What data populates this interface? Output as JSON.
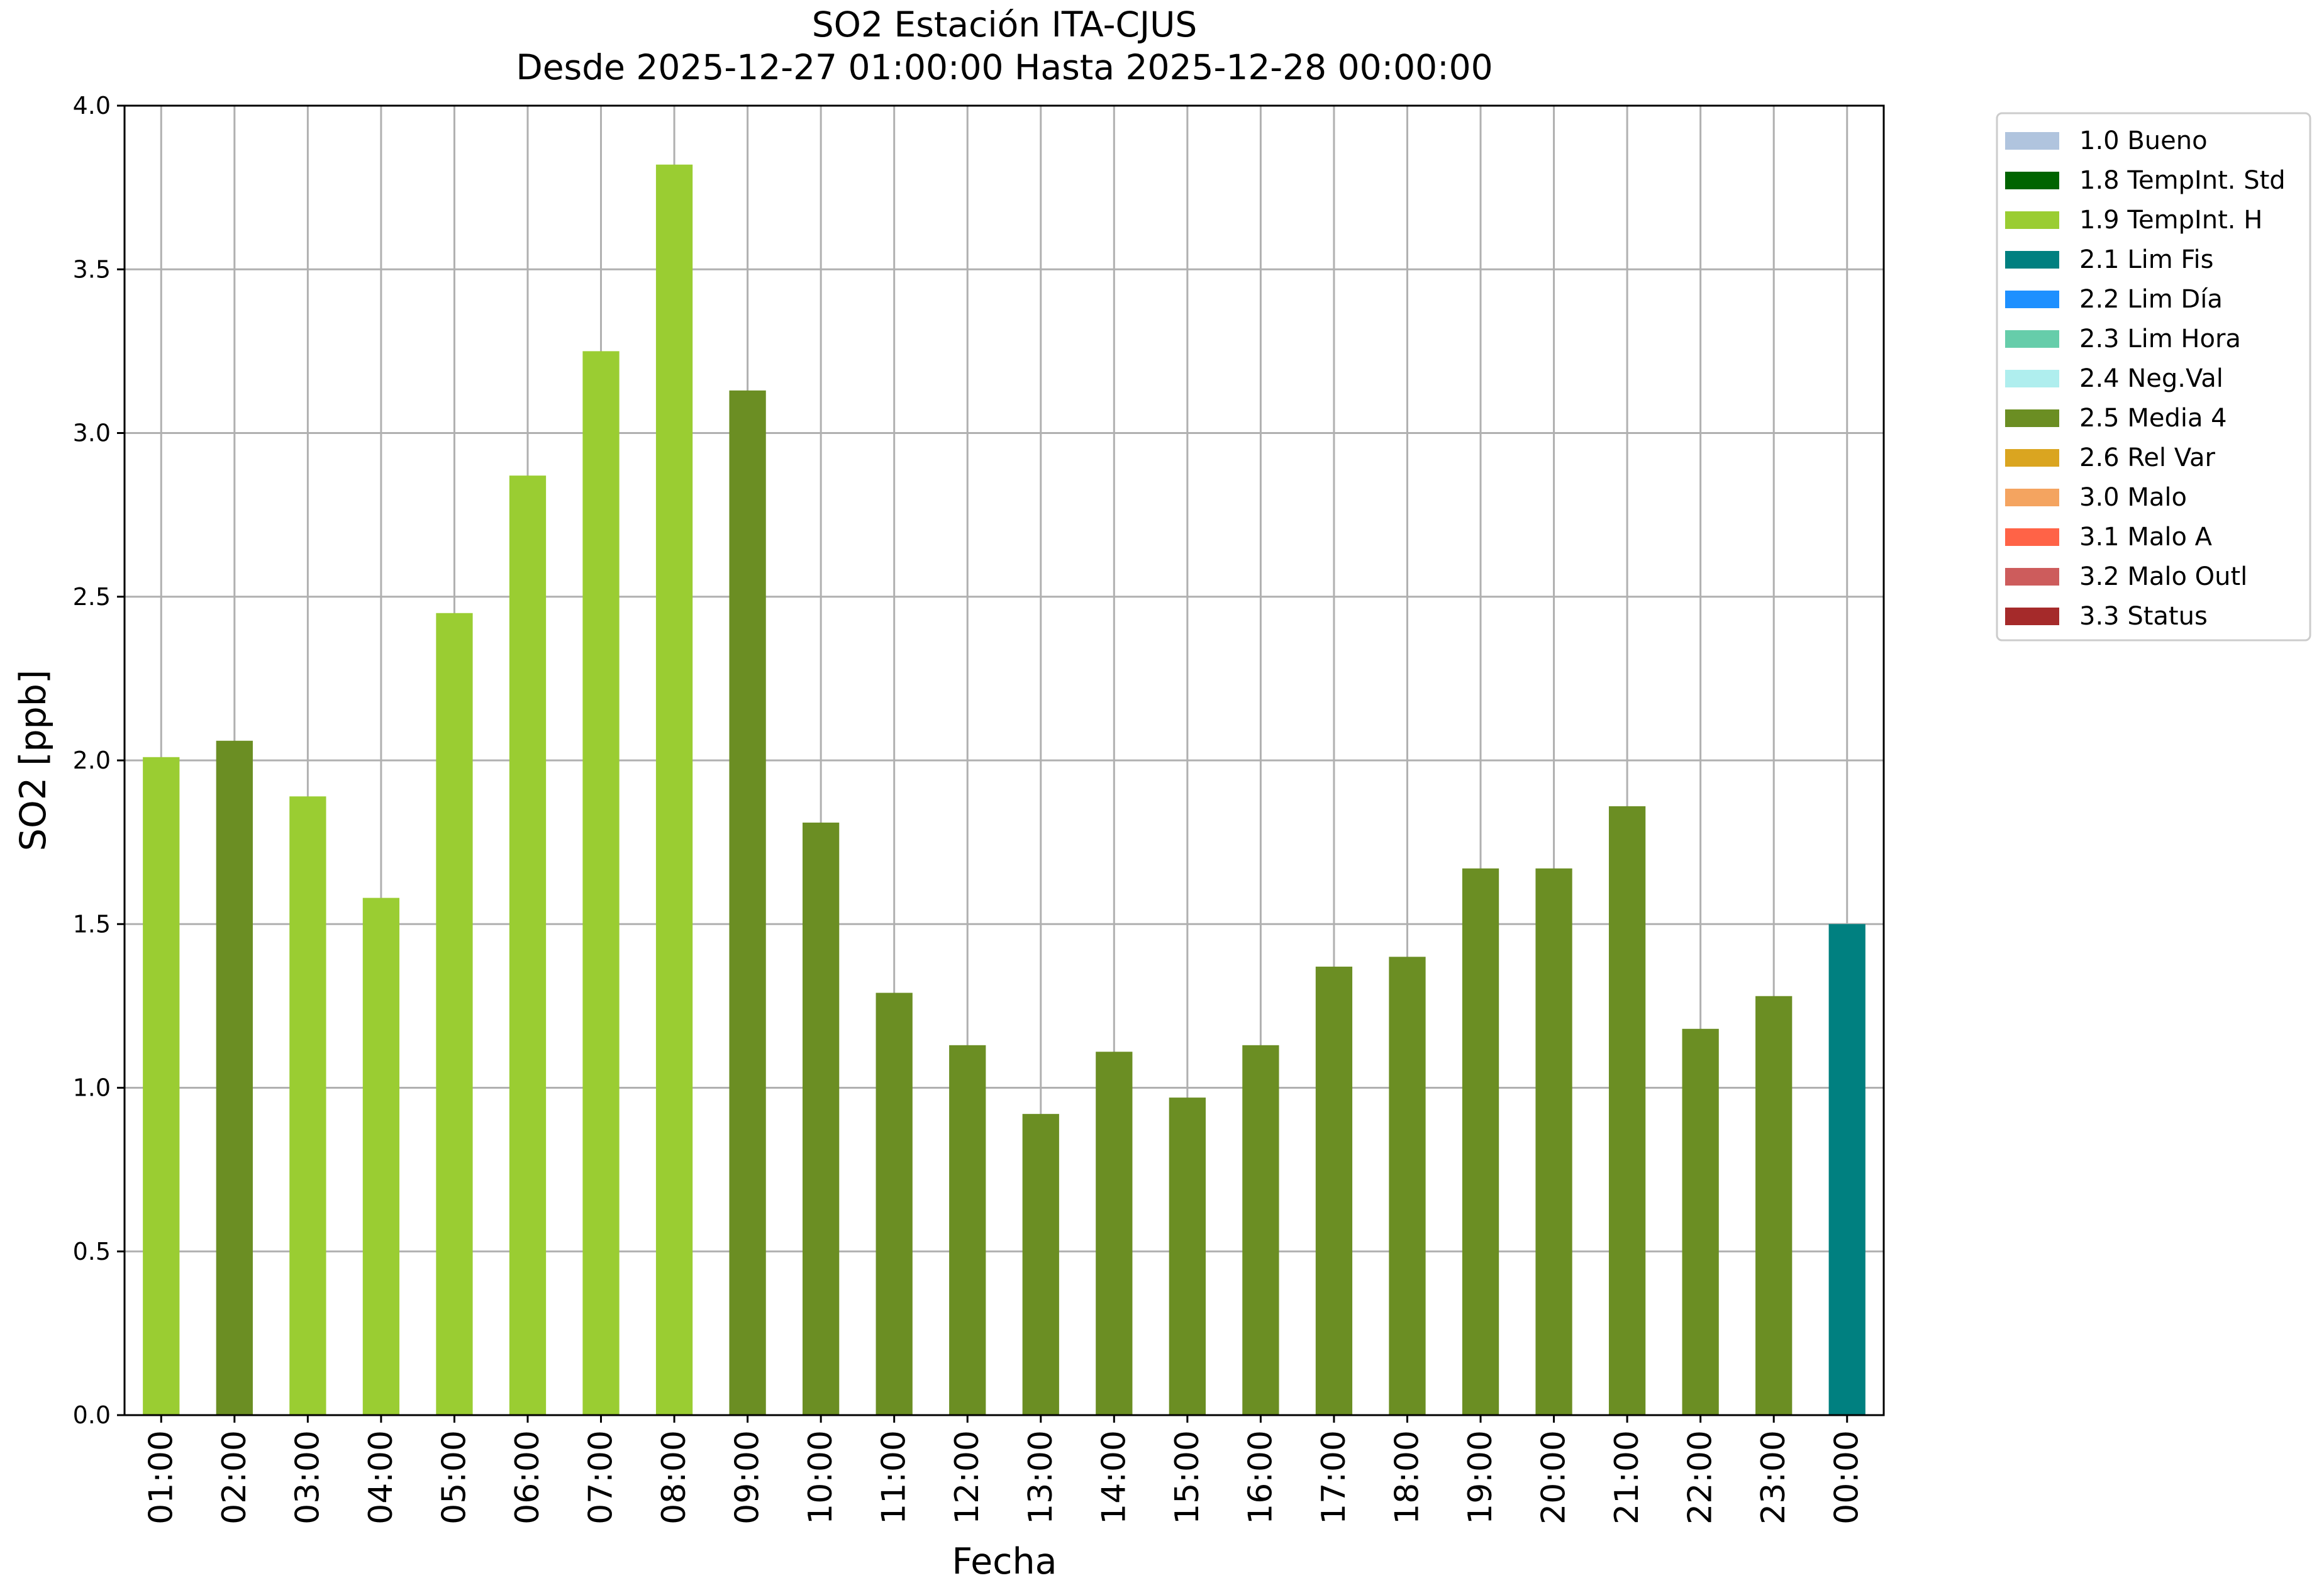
{
  "chart_data": {
    "type": "bar",
    "title": "SO2 Estación ITA-CJUS",
    "subtitle": "Desde 2025-12-27 01:00:00 Hasta 2025-12-28 00:00:00",
    "xlabel": "Fecha",
    "ylabel": "SO2 [ppb]",
    "ylim": [
      0,
      4.0
    ],
    "yticks": [
      "0.0",
      "0.5",
      "1.0",
      "1.5",
      "2.0",
      "2.5",
      "3.0",
      "3.5",
      "4.0"
    ],
    "grid": true,
    "legend_position": "outside-top-right",
    "categories": [
      "01:00",
      "02:00",
      "03:00",
      "04:00",
      "05:00",
      "06:00",
      "07:00",
      "08:00",
      "09:00",
      "10:00",
      "11:00",
      "12:00",
      "13:00",
      "14:00",
      "15:00",
      "16:00",
      "17:00",
      "18:00",
      "19:00",
      "20:00",
      "21:00",
      "22:00",
      "23:00",
      "00:00"
    ],
    "values": [
      2.01,
      2.06,
      1.89,
      1.58,
      2.45,
      2.87,
      3.25,
      3.82,
      3.13,
      1.81,
      1.29,
      1.13,
      0.92,
      1.11,
      0.97,
      1.13,
      1.37,
      1.4,
      1.67,
      1.67,
      1.86,
      1.18,
      1.28,
      1.5
    ],
    "flags": [
      "1.9 TempInt. H",
      "2.5 Media 4",
      "1.9 TempInt. H",
      "1.9 TempInt. H",
      "1.9 TempInt. H",
      "1.9 TempInt. H",
      "1.9 TempInt. H",
      "1.9 TempInt. H",
      "2.5 Media 4",
      "2.5 Media 4",
      "2.5 Media 4",
      "2.5 Media 4",
      "2.5 Media 4",
      "2.5 Media 4",
      "2.5 Media 4",
      "2.5 Media 4",
      "2.5 Media 4",
      "2.5 Media 4",
      "2.5 Media 4",
      "2.5 Media 4",
      "2.5 Media 4",
      "2.5 Media 4",
      "2.5 Media 4",
      "2.1 Lim Fis"
    ],
    "legend": [
      {
        "label": "1.0 Bueno",
        "color": "#b0c4de"
      },
      {
        "label": "1.8 TempInt. Std",
        "color": "#006400"
      },
      {
        "label": "1.9 TempInt. H",
        "color": "#9acd32"
      },
      {
        "label": "2.1 Lim Fis",
        "color": "#008080"
      },
      {
        "label": "2.2 Lim Día",
        "color": "#1e90ff"
      },
      {
        "label": "2.3 Lim Hora",
        "color": "#66cdaa"
      },
      {
        "label": "2.4 Neg.Val",
        "color": "#afeeee"
      },
      {
        "label": "2.5 Media 4",
        "color": "#6b8e23"
      },
      {
        "label": "2.6 Rel Var",
        "color": "#daa520"
      },
      {
        "label": "3.0 Malo",
        "color": "#f4a460"
      },
      {
        "label": "3.1 Malo A",
        "color": "#ff6347"
      },
      {
        "label": "3.2 Malo Outl",
        "color": "#cd5c5c"
      },
      {
        "label": "3.3 Status",
        "color": "#a52a2a"
      }
    ]
  }
}
